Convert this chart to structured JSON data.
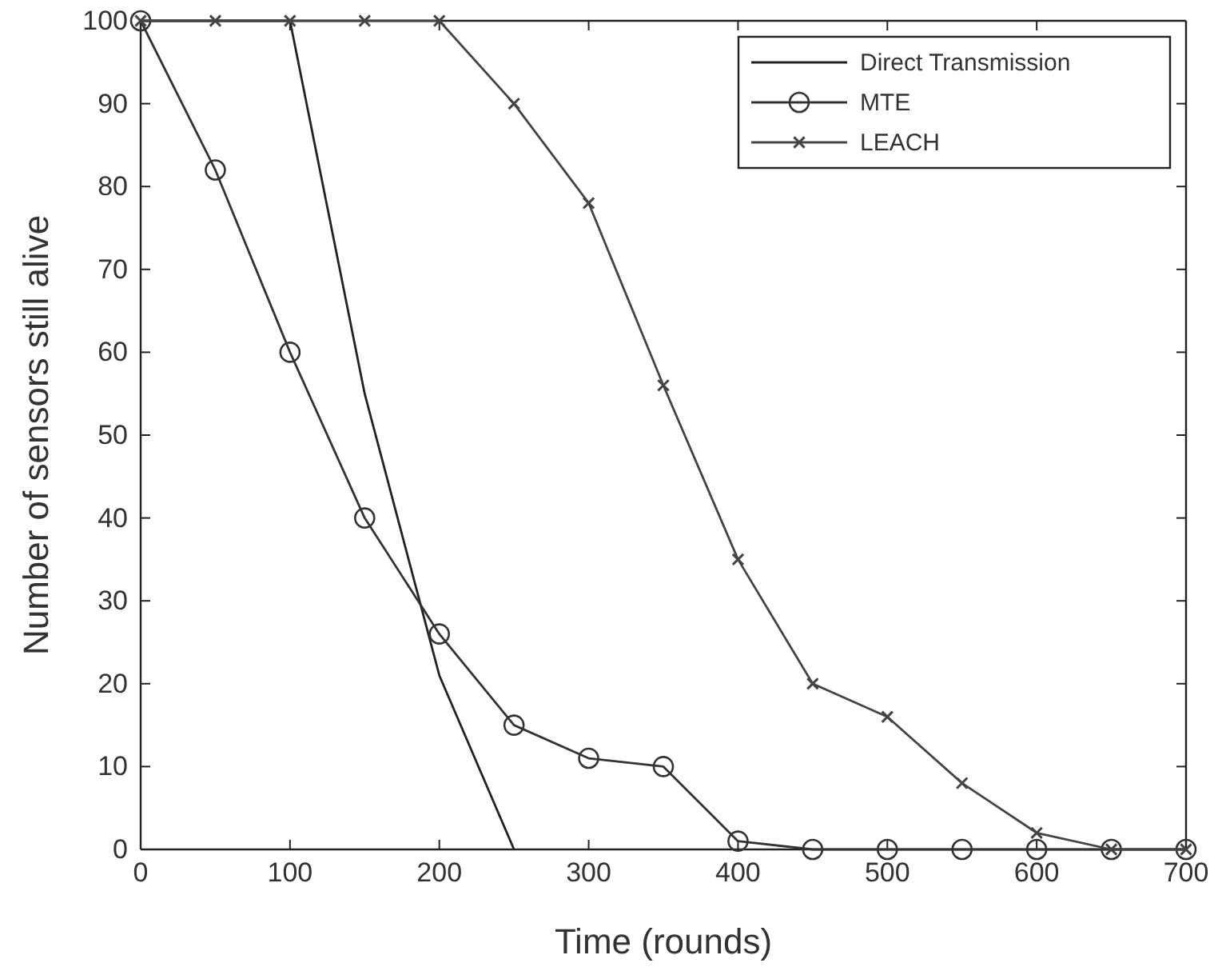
{
  "chart_data": {
    "type": "line",
    "xlabel": "Time (rounds)",
    "ylabel": "Number of sensors still alive",
    "xlim": [
      0,
      700
    ],
    "xticks": [
      0,
      100,
      200,
      300,
      400,
      500,
      600,
      700
    ],
    "ylim": [
      0,
      100
    ],
    "yticks": [
      0,
      10,
      20,
      30,
      40,
      50,
      60,
      70,
      80,
      90,
      100
    ],
    "grid": false,
    "legend": "top right",
    "line_style": "solid",
    "series": [
      {
        "name": "Direct Transmission",
        "color": "#222222",
        "marker": "none",
        "x": [
          0,
          50,
          100,
          150,
          200,
          250
        ],
        "values": [
          100,
          100,
          100,
          55,
          21,
          0
        ]
      },
      {
        "name": "MTE",
        "color": "#333333",
        "marker": "circle",
        "x": [
          0,
          50,
          100,
          150,
          200,
          250,
          300,
          350,
          400,
          450,
          500,
          550,
          600,
          650,
          700
        ],
        "values": [
          100,
          82,
          60,
          40,
          26,
          15,
          11,
          10,
          1,
          0,
          0,
          0,
          0,
          0,
          0
        ]
      },
      {
        "name": "LEACH",
        "color": "#444444",
        "marker": "cross",
        "x": [
          0,
          50,
          100,
          150,
          200,
          250,
          300,
          350,
          400,
          450,
          500,
          550,
          600,
          650,
          700
        ],
        "values": [
          100,
          100,
          100,
          100,
          100,
          90,
          78,
          56,
          35,
          20,
          16,
          8,
          2,
          0,
          0
        ]
      }
    ]
  }
}
